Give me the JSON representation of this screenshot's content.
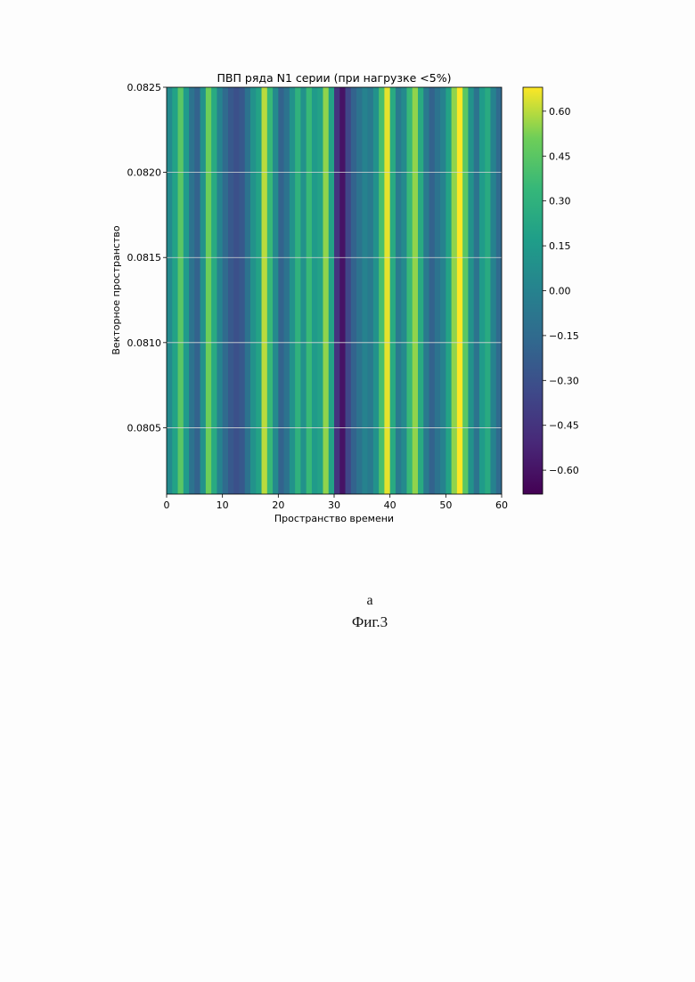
{
  "chart_data": {
    "type": "heatmap",
    "title": "ПВП ряда N1 серии (при нагрузке <5%)",
    "xlabel": "Пространство времени",
    "ylabel": "Векторное пространство",
    "xlim": [
      0,
      60
    ],
    "ylim": [
      0.08011,
      0.0825
    ],
    "x_ticks": [
      0,
      10,
      20,
      30,
      40,
      50,
      60
    ],
    "x_tick_labels": [
      "0",
      "10",
      "20",
      "30",
      "40",
      "50",
      "60"
    ],
    "y_ticks": [
      0.0805,
      0.081,
      0.0815,
      0.082,
      0.0825
    ],
    "y_tick_labels": [
      "0.0805",
      "0.0810",
      "0.0815",
      "0.0820",
      "0.0825"
    ],
    "grid": true,
    "colormap": "viridis",
    "colorbar": {
      "vmin": -0.68,
      "vmax": 0.68,
      "ticks": [
        0.6,
        0.45,
        0.3,
        0.15,
        0.0,
        -0.15,
        -0.3,
        -0.45,
        -0.6
      ],
      "tick_labels": [
        "0.60",
        "0.45",
        "0.30",
        "0.15",
        "0.00",
        "−0.15",
        "−0.30",
        "−0.45",
        "−0.60"
      ]
    },
    "column_values": [
      {
        "x": 0,
        "v": 0.05
      },
      {
        "x": 1,
        "v": 0.2
      },
      {
        "x": 2,
        "v": 0.45
      },
      {
        "x": 3,
        "v": 0.15
      },
      {
        "x": 4,
        "v": -0.1
      },
      {
        "x": 5,
        "v": -0.2
      },
      {
        "x": 6,
        "v": 0.1
      },
      {
        "x": 7,
        "v": 0.5
      },
      {
        "x": 8,
        "v": 0.25
      },
      {
        "x": 9,
        "v": 0.0
      },
      {
        "x": 10,
        "v": -0.15
      },
      {
        "x": 11,
        "v": -0.25
      },
      {
        "x": 12,
        "v": -0.3
      },
      {
        "x": 13,
        "v": -0.25
      },
      {
        "x": 14,
        "v": -0.1
      },
      {
        "x": 15,
        "v": 0.1
      },
      {
        "x": 16,
        "v": 0.2
      },
      {
        "x": 17,
        "v": 0.6
      },
      {
        "x": 18,
        "v": 0.35
      },
      {
        "x": 19,
        "v": 0.05
      },
      {
        "x": 20,
        "v": -0.2
      },
      {
        "x": 21,
        "v": -0.1
      },
      {
        "x": 22,
        "v": 0.1
      },
      {
        "x": 23,
        "v": 0.3
      },
      {
        "x": 24,
        "v": 0.1
      },
      {
        "x": 25,
        "v": 0.35
      },
      {
        "x": 26,
        "v": 0.15
      },
      {
        "x": 27,
        "v": 0.2
      },
      {
        "x": 28,
        "v": 0.55
      },
      {
        "x": 29,
        "v": 0.2
      },
      {
        "x": 30,
        "v": -0.45
      },
      {
        "x": 31,
        "v": -0.6
      },
      {
        "x": 32,
        "v": -0.35
      },
      {
        "x": 33,
        "v": -0.2
      },
      {
        "x": 34,
        "v": -0.1
      },
      {
        "x": 35,
        "v": 0.0
      },
      {
        "x": 36,
        "v": -0.05
      },
      {
        "x": 37,
        "v": 0.1
      },
      {
        "x": 38,
        "v": 0.4
      },
      {
        "x": 39,
        "v": 0.65
      },
      {
        "x": 40,
        "v": 0.25
      },
      {
        "x": 41,
        "v": -0.05
      },
      {
        "x": 42,
        "v": 0.05
      },
      {
        "x": 43,
        "v": 0.35
      },
      {
        "x": 44,
        "v": 0.55
      },
      {
        "x": 45,
        "v": 0.25
      },
      {
        "x": 46,
        "v": -0.05
      },
      {
        "x": 47,
        "v": -0.2
      },
      {
        "x": 48,
        "v": -0.1
      },
      {
        "x": 49,
        "v": 0.0
      },
      {
        "x": 50,
        "v": 0.2
      },
      {
        "x": 51,
        "v": 0.55
      },
      {
        "x": 52,
        "v": 0.68
      },
      {
        "x": 53,
        "v": 0.45
      },
      {
        "x": 54,
        "v": 0.1
      },
      {
        "x": 55,
        "v": -0.1
      },
      {
        "x": 56,
        "v": 0.15
      },
      {
        "x": 57,
        "v": 0.25
      },
      {
        "x": 58,
        "v": 0.0
      },
      {
        "x": 59,
        "v": -0.15
      }
    ]
  },
  "captions": {
    "sub_label": "а",
    "figure_label": "Фиг.3"
  }
}
